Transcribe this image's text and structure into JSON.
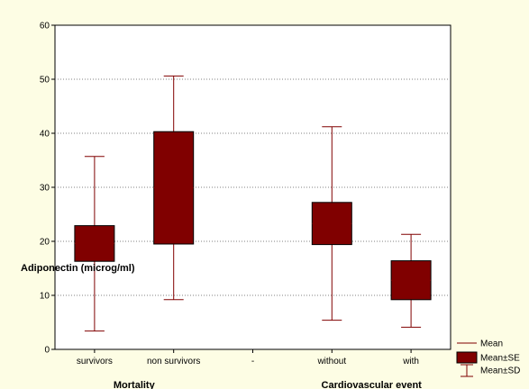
{
  "chart_data": {
    "type": "box",
    "ylabel": "Adiponectin (microg/ml)",
    "ylim": [
      0,
      60
    ],
    "yticks": [
      0,
      10,
      20,
      30,
      40,
      50,
      60
    ],
    "grid": true,
    "categories": [
      "survivors",
      "non survivors",
      "-",
      "without",
      "with"
    ],
    "groups": [
      {
        "label": "Mortality",
        "categories": [
          "survivors",
          "non survivors"
        ]
      },
      {
        "label": "Cardiovascular event",
        "categories": [
          "without",
          "with"
        ]
      }
    ],
    "series": [
      {
        "category": "survivors",
        "mean": 19.6,
        "se_low": 16.3,
        "se_high": 22.9,
        "sd_low": 3.4,
        "sd_high": 35.7
      },
      {
        "category": "non survivors",
        "mean": 29.9,
        "se_low": 19.5,
        "se_high": 40.3,
        "sd_low": 9.2,
        "sd_high": 50.6
      },
      {
        "category": "without",
        "mean": 23.3,
        "se_low": 19.4,
        "se_high": 27.2,
        "sd_low": 5.4,
        "sd_high": 41.2
      },
      {
        "category": "with",
        "mean": 12.8,
        "se_low": 9.2,
        "se_high": 16.4,
        "sd_low": 4.1,
        "sd_high": 21.3
      }
    ],
    "legend": {
      "placement": "bottom-right",
      "entries": [
        "Mean",
        "Mean±SE",
        "Mean±SD"
      ]
    },
    "colors": {
      "box": "#800000",
      "whisker": "#800000",
      "background": "#fdfde4",
      "plot": "#ffffff"
    }
  }
}
